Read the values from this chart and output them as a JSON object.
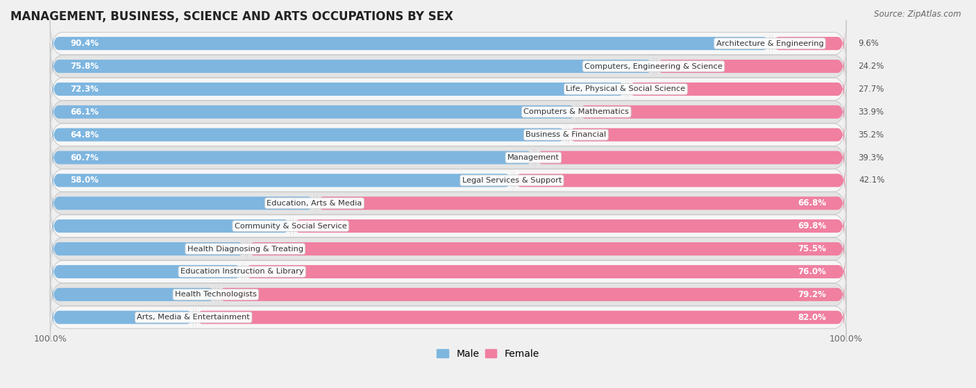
{
  "title": "MANAGEMENT, BUSINESS, SCIENCE AND ARTS OCCUPATIONS BY SEX",
  "source": "Source: ZipAtlas.com",
  "categories": [
    "Architecture & Engineering",
    "Computers, Engineering & Science",
    "Life, Physical & Social Science",
    "Computers & Mathematics",
    "Business & Financial",
    "Management",
    "Legal Services & Support",
    "Education, Arts & Media",
    "Community & Social Service",
    "Health Diagnosing & Treating",
    "Education Instruction & Library",
    "Health Technologists",
    "Arts, Media & Entertainment"
  ],
  "male_pct": [
    90.4,
    75.8,
    72.3,
    66.1,
    64.8,
    60.7,
    58.0,
    33.2,
    30.2,
    24.5,
    24.1,
    20.8,
    18.0
  ],
  "female_pct": [
    9.6,
    24.2,
    27.7,
    33.9,
    35.2,
    39.3,
    42.1,
    66.8,
    69.8,
    75.5,
    76.0,
    79.2,
    82.0
  ],
  "male_color": "#7EB6E0",
  "female_color": "#F07FA0",
  "bg_color": "#f0f0f0",
  "row_bg_light": "#f7f7f7",
  "row_bg_dark": "#e4e4e4",
  "bar_height": 0.58,
  "label_fontsize": 8.5,
  "title_fontsize": 12,
  "legend_fontsize": 10,
  "xlim_left": -5,
  "xlim_right": 115
}
